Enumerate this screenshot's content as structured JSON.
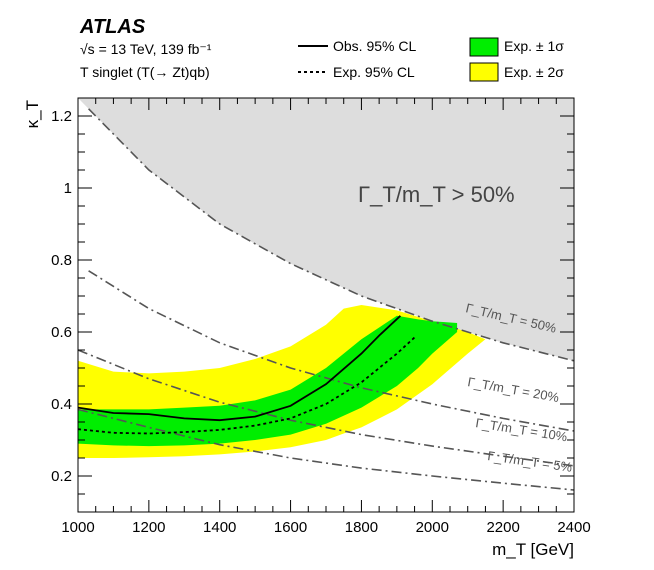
{
  "header": {
    "experiment": "ATLAS",
    "energy_line": "√s = 13 TeV, 139 fb⁻¹",
    "model_line": "T singlet (T(→ Zt)qb)"
  },
  "chart_data": {
    "type": "line",
    "title": "",
    "xlabel": "m_T [GeV]",
    "ylabel": "κ_T",
    "xlim": [
      1000,
      2400
    ],
    "ylim": [
      0.1,
      1.25
    ],
    "x_ticks": [
      1000,
      1200,
      1400,
      1600,
      1800,
      2000,
      2200,
      2400
    ],
    "x_tick_labels": [
      "1000",
      "1200",
      "1400",
      "1600",
      "1800",
      "2000",
      "2200",
      "2400"
    ],
    "y_ticks": [
      0.2,
      0.4,
      0.6,
      0.8,
      1.0,
      1.2
    ],
    "y_tick_labels": [
      "0.2",
      "0.4",
      "0.6",
      "0.8",
      "1",
      "1.2"
    ],
    "legend": [
      {
        "key": "observed",
        "label": "Obs. 95% CL",
        "style": "solid"
      },
      {
        "key": "expected",
        "label": "Exp. 95% CL",
        "style": "dashed"
      },
      {
        "key": "band1",
        "label": "Exp. ± 1σ",
        "color": "#00ee00"
      },
      {
        "key": "band2",
        "label": "Exp. ± 2σ",
        "color": "#ffff00"
      }
    ],
    "excluded_region_label": "Γ_T/m_T > 50%",
    "excluded_region_color": "#dddddd",
    "width_curves": [
      {
        "label": "Γ_T/m_T = 50%",
        "x": [
          1030,
          1200,
          1400,
          1600,
          1800,
          2000,
          2200,
          2400
        ],
        "y": [
          1.22,
          1.05,
          0.9,
          0.79,
          0.7,
          0.63,
          0.57,
          0.52
        ]
      },
      {
        "label": "Γ_T/m_T = 20%",
        "x": [
          1030,
          1200,
          1400,
          1600,
          1800,
          2000,
          2200,
          2400
        ],
        "y": [
          0.77,
          0.665,
          0.57,
          0.5,
          0.445,
          0.4,
          0.36,
          0.325
        ]
      },
      {
        "label": "Γ_T/m_T = 10%",
        "x": [
          1000,
          1200,
          1400,
          1600,
          1800,
          2000,
          2200,
          2400
        ],
        "y": [
          0.55,
          0.47,
          0.405,
          0.355,
          0.315,
          0.283,
          0.255,
          0.228
        ]
      },
      {
        "label": "Γ_T/m_T = 5%",
        "x": [
          1000,
          1200,
          1400,
          1600,
          1800,
          2000,
          2200,
          2400
        ],
        "y": [
          0.385,
          0.335,
          0.287,
          0.25,
          0.222,
          0.2,
          0.18,
          0.161
        ]
      }
    ],
    "series": [
      {
        "name": "Obs. 95% CL",
        "x": [
          1000,
          1100,
          1200,
          1300,
          1400,
          1500,
          1600,
          1700,
          1800,
          1850,
          1910
        ],
        "y": [
          0.39,
          0.375,
          0.372,
          0.36,
          0.355,
          0.365,
          0.395,
          0.455,
          0.54,
          0.59,
          0.645
        ]
      },
      {
        "name": "Exp. 95% CL",
        "x": [
          1000,
          1100,
          1200,
          1300,
          1400,
          1500,
          1600,
          1700,
          1800,
          1900,
          1950
        ],
        "y": [
          0.33,
          0.32,
          0.318,
          0.322,
          0.328,
          0.34,
          0.36,
          0.4,
          0.46,
          0.54,
          0.585
        ]
      }
    ],
    "band_1sigma": {
      "x": [
        1000,
        1100,
        1200,
        1300,
        1400,
        1500,
        1600,
        1700,
        1800,
        1900,
        1960,
        2000,
        2070
      ],
      "upper": [
        0.385,
        0.385,
        0.385,
        0.39,
        0.395,
        0.41,
        0.44,
        0.5,
        0.58,
        0.645,
        0.635,
        0.63,
        0.625
      ],
      "lower": [
        0.29,
        0.285,
        0.283,
        0.285,
        0.29,
        0.3,
        0.315,
        0.345,
        0.39,
        0.45,
        0.5,
        0.54,
        0.6
      ]
    },
    "band_2sigma": {
      "x": [
        1000,
        1100,
        1200,
        1300,
        1400,
        1500,
        1600,
        1700,
        1750,
        1800,
        1900,
        2000,
        2100,
        2150
      ],
      "upper": [
        0.52,
        0.49,
        0.485,
        0.49,
        0.5,
        0.525,
        0.56,
        0.62,
        0.665,
        0.675,
        0.66,
        0.63,
        0.6,
        0.58
      ],
      "lower": [
        0.25,
        0.25,
        0.252,
        0.255,
        0.26,
        0.268,
        0.28,
        0.3,
        0.318,
        0.335,
        0.385,
        0.455,
        0.54,
        0.58
      ]
    }
  }
}
